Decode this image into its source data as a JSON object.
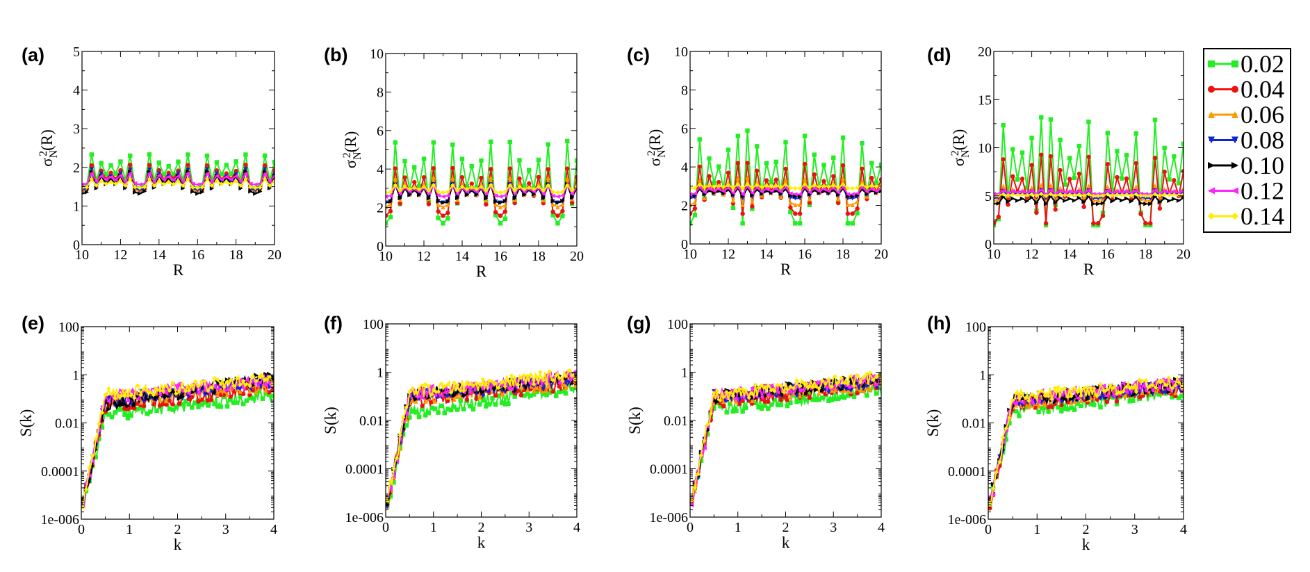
{
  "legend": {
    "entries": [
      {
        "label": "0.02",
        "color": "#22ee22",
        "marker": "square"
      },
      {
        "label": "0.04",
        "color": "#ee1111",
        "marker": "circle"
      },
      {
        "label": "0.06",
        "color": "#ff9900",
        "marker": "triangle-up"
      },
      {
        "label": "0.08",
        "color": "#1122dd",
        "marker": "triangle-down"
      },
      {
        "label": "0.10",
        "color": "#000000",
        "marker": "triangle-right"
      },
      {
        "label": "0.12",
        "color": "#ff22ff",
        "marker": "triangle-left"
      },
      {
        "label": "0.14",
        "color": "#ffee00",
        "marker": "diamond"
      }
    ],
    "placement": "right"
  },
  "chart_data": [
    {
      "type": "line",
      "panel": "(a)",
      "xlabel": "R",
      "ylabel": "σ_N^2(R)",
      "ylabel_parts": {
        "base": "σ",
        "sub": "N",
        "sup": "2",
        "tail": "(R)"
      },
      "xlim": [
        10,
        20
      ],
      "ylim": [
        0,
        5
      ],
      "xticks": [
        "10",
        "12",
        "14",
        "16",
        "18",
        "20"
      ],
      "yticks": [
        "0",
        "1",
        "2",
        "3",
        "4",
        "5"
      ],
      "pattern": {
        "base": [
          1.95,
          1.78,
          1.72,
          1.72,
          1.65,
          1.72,
          1.6
        ],
        "amp": [
          0.45,
          0.35,
          0.3,
          0.28,
          0.3,
          0.15,
          0.12
        ],
        "period": 3,
        "wiggle": 0.5
      }
    },
    {
      "type": "line",
      "panel": "(b)",
      "xlabel": "R",
      "ylabel": "σ_N^2(R)",
      "ylabel_parts": {
        "base": "σ",
        "sub": "N",
        "sup": "2",
        "tail": "(R)"
      },
      "xlim": [
        10,
        20
      ],
      "ylim": [
        0,
        10
      ],
      "xticks": [
        "10",
        "12",
        "14",
        "16",
        "18",
        "20"
      ],
      "yticks": [
        "0",
        "2",
        "4",
        "6",
        "8",
        "10"
      ],
      "pattern": {
        "base": [
          3.6,
          3.0,
          2.9,
          2.8,
          2.8,
          2.9,
          3.0
        ],
        "amp": [
          2.2,
          1.3,
          0.8,
          0.5,
          0.5,
          0.3,
          0.2
        ],
        "period": 3,
        "wiggle": 0.5
      }
    },
    {
      "type": "line",
      "panel": "(c)",
      "xlabel": "R",
      "ylabel": "σ_N^2(R)",
      "ylabel_parts": {
        "base": "σ",
        "sub": "N",
        "sup": "2",
        "tail": "(R)"
      },
      "xlim": [
        10,
        20
      ],
      "ylim": [
        0,
        10
      ],
      "xticks": [
        "10",
        "12",
        "14",
        "16",
        "18",
        "20"
      ],
      "yticks": [
        "0",
        "2",
        "4",
        "6",
        "8",
        "10"
      ],
      "pattern": {
        "base": [
          3.6,
          3.0,
          2.8,
          2.7,
          2.7,
          2.8,
          3.0
        ],
        "amp": [
          2.3,
          1.3,
          0.7,
          0.3,
          0.2,
          0.2,
          0.1
        ],
        "period": 2.8,
        "wiggle": 0.5
      }
    },
    {
      "type": "line",
      "panel": "(d)",
      "xlabel": "R",
      "ylabel": "σ_N^2(R)",
      "ylabel_parts": {
        "base": "σ",
        "sub": "N",
        "sup": "2",
        "tail": "(R)"
      },
      "xlim": [
        10,
        20
      ],
      "ylim": [
        0,
        20
      ],
      "xticks": [
        "10",
        "12",
        "14",
        "16",
        "18",
        "20"
      ],
      "yticks": [
        "0",
        "5",
        "10",
        "15",
        "20"
      ],
      "pattern": {
        "base": [
          8.0,
          6.0,
          5.4,
          5.2,
          4.6,
          5.4,
          5.1
        ],
        "amp": [
          5.5,
          3.5,
          0.8,
          0.4,
          0.4,
          0.2,
          0.1
        ],
        "period": 2.7,
        "wiggle": 0.5
      }
    },
    {
      "type": "line",
      "panel": "(e)",
      "xlabel": "k",
      "ylabel": "S(k)",
      "yscale": "log",
      "xlim": [
        0,
        4
      ],
      "ylim": [
        1e-06,
        100
      ],
      "xticks": [
        "0",
        "1",
        "2",
        "3",
        "4"
      ],
      "yticks": [
        "1e-006",
        "0.0001",
        "0.01",
        "1",
        "100"
      ],
      "pattern": {
        "plateau": [
          0.02,
          0.05,
          0.08,
          0.08,
          0.06,
          0.12,
          0.15
        ],
        "final": [
          0.15,
          0.3,
          0.4,
          0.5,
          0.8,
          0.6,
          0.7
        ]
      }
    },
    {
      "type": "line",
      "panel": "(f)",
      "xlabel": "k",
      "ylabel": "S(k)",
      "yscale": "log",
      "xlim": [
        0,
        4
      ],
      "ylim": [
        1e-06,
        100
      ],
      "xticks": [
        "0",
        "1",
        "2",
        "3",
        "4"
      ],
      "yticks": [
        "1e-006",
        "0.0001",
        "0.01",
        "1",
        "100"
      ],
      "pattern": {
        "plateau": [
          0.02,
          0.06,
          0.08,
          0.09,
          0.12,
          0.13,
          0.15
        ],
        "final": [
          0.25,
          0.35,
          0.4,
          0.5,
          0.5,
          0.7,
          0.8
        ]
      }
    },
    {
      "type": "line",
      "panel": "(g)",
      "xlabel": "k",
      "ylabel": "S(k)",
      "yscale": "log",
      "xlim": [
        0,
        4
      ],
      "ylim": [
        1e-06,
        100
      ],
      "xticks": [
        "0",
        "1",
        "2",
        "3",
        "4"
      ],
      "yticks": [
        "1e-006",
        "0.0001",
        "0.01",
        "1",
        "100"
      ],
      "pattern": {
        "plateau": [
          0.03,
          0.06,
          0.08,
          0.09,
          0.09,
          0.1,
          0.11
        ],
        "final": [
          0.2,
          0.3,
          0.35,
          0.4,
          0.5,
          0.5,
          0.6
        ]
      }
    },
    {
      "type": "line",
      "panel": "(h)",
      "xlabel": "k",
      "ylabel": "S(k)",
      "yscale": "log",
      "xlim": [
        0,
        4
      ],
      "ylim": [
        1e-06,
        100
      ],
      "xticks": [
        "0",
        "1",
        "2",
        "3",
        "4"
      ],
      "yticks": [
        "1e-006",
        "0.0001",
        "0.01",
        "1",
        "100"
      ],
      "pattern": {
        "plateau": [
          0.03,
          0.06,
          0.07,
          0.08,
          0.09,
          0.1,
          0.12
        ],
        "final": [
          0.2,
          0.25,
          0.3,
          0.35,
          0.4,
          0.45,
          0.5
        ]
      }
    }
  ]
}
